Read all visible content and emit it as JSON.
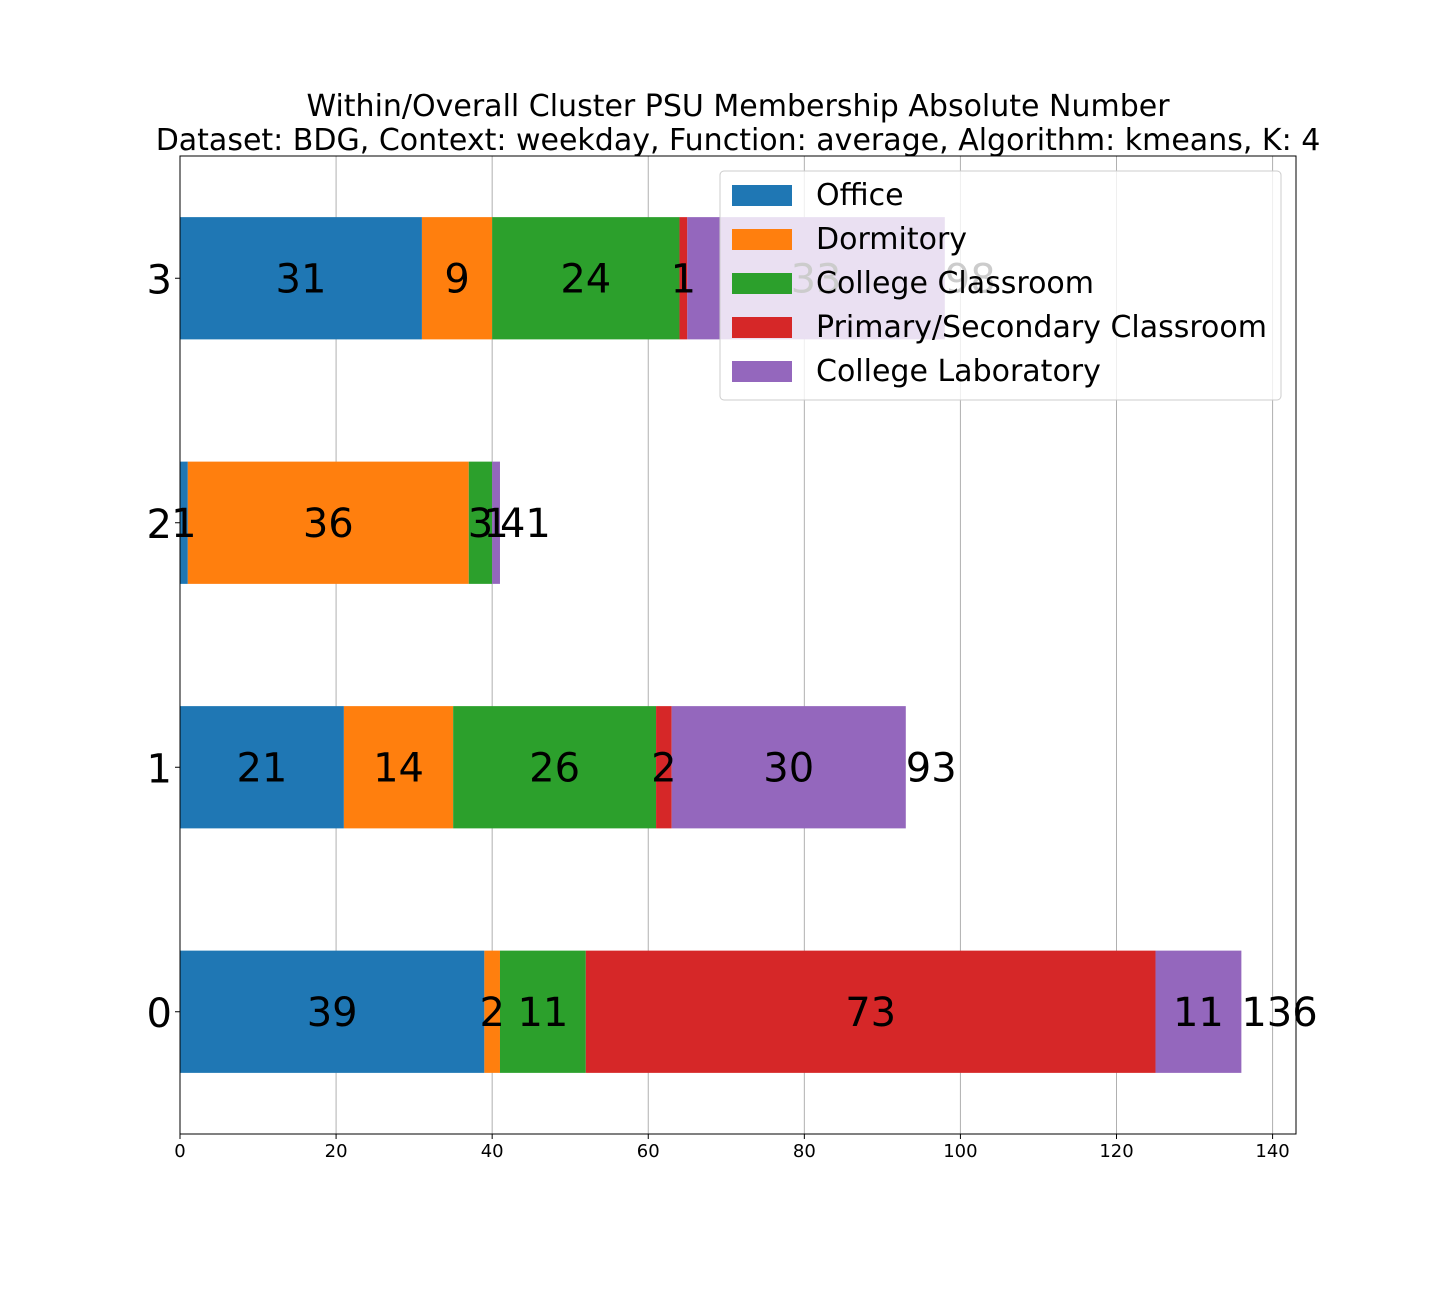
{
  "chart_data": {
    "type": "bar",
    "orientation": "horizontal",
    "stacked": true,
    "title": "Within/Overall Cluster PSU Membership Absolute Number",
    "subtitle": "Dataset: BDG, Context: weekday, Function: average, Algorithm: kmeans, K: 4",
    "xlabel": "",
    "ylabel": "",
    "categories": [
      "0",
      "1",
      "2",
      "3"
    ],
    "xlim": [
      0,
      143
    ],
    "xticks": [
      "0",
      "20",
      "40",
      "60",
      "80",
      "100",
      "120",
      "140"
    ],
    "grid": "x",
    "legend_position": "top-right",
    "series": [
      {
        "name": "Office",
        "color": "#1f77b4",
        "values": [
          39,
          21,
          1,
          31
        ]
      },
      {
        "name": "Dormitory",
        "color": "#ff7f0e",
        "values": [
          2,
          14,
          36,
          9
        ]
      },
      {
        "name": "College Classroom",
        "color": "#2ca02c",
        "values": [
          11,
          26,
          3,
          24
        ]
      },
      {
        "name": "Primary/Secondary Classroom",
        "color": "#d62728",
        "values": [
          73,
          2,
          0,
          1
        ]
      },
      {
        "name": "College Laboratory",
        "color": "#9467bd",
        "values": [
          11,
          30,
          1,
          33
        ]
      }
    ],
    "totals": [
      "136",
      "93",
      "41",
      "98"
    ]
  }
}
